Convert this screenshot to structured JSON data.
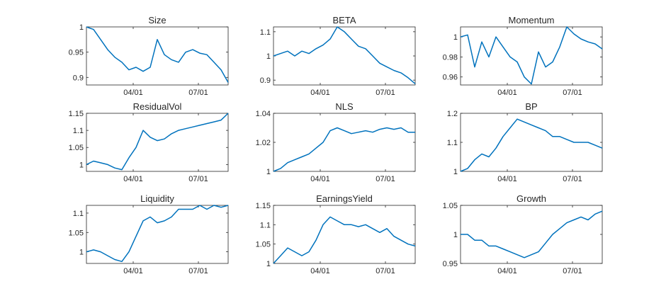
{
  "chart_data": [
    {
      "type": "line",
      "title": "Size",
      "x_ticks": [
        "04/01",
        "07/01"
      ],
      "y_ticks": [
        0.9,
        0.95,
        1
      ],
      "ylim": [
        0.885,
        1.0
      ],
      "xlim": [
        0,
        1
      ],
      "series_color": "#0072BD",
      "series": [
        {
          "x": [
            0,
            0.05,
            0.1,
            0.15,
            0.2,
            0.25,
            0.3,
            0.35,
            0.4,
            0.45,
            0.5,
            0.55,
            0.6,
            0.65,
            0.7,
            0.75,
            0.8,
            0.85,
            0.9,
            0.95,
            1.0
          ],
          "values": [
            1.0,
            0.995,
            0.975,
            0.955,
            0.94,
            0.93,
            0.915,
            0.92,
            0.912,
            0.92,
            0.975,
            0.945,
            0.935,
            0.93,
            0.95,
            0.955,
            0.948,
            0.945,
            0.93,
            0.915,
            0.89
          ]
        }
      ]
    },
    {
      "type": "line",
      "title": "BETA",
      "x_ticks": [
        "04/01",
        "07/01"
      ],
      "y_ticks": [
        0.9,
        1,
        1.1
      ],
      "ylim": [
        0.88,
        1.12
      ],
      "xlim": [
        0,
        1
      ],
      "series_color": "#0072BD",
      "series": [
        {
          "x": [
            0,
            0.05,
            0.1,
            0.15,
            0.2,
            0.25,
            0.3,
            0.35,
            0.4,
            0.45,
            0.5,
            0.55,
            0.6,
            0.65,
            0.7,
            0.75,
            0.8,
            0.85,
            0.9,
            0.95,
            1.0
          ],
          "values": [
            1.0,
            1.01,
            1.02,
            1.0,
            1.02,
            1.01,
            1.03,
            1.045,
            1.07,
            1.12,
            1.1,
            1.07,
            1.04,
            1.03,
            1.0,
            0.97,
            0.955,
            0.94,
            0.93,
            0.91,
            0.885
          ]
        }
      ]
    },
    {
      "type": "line",
      "title": "Momentum",
      "x_ticks": [
        "04/01",
        "07/01"
      ],
      "y_ticks": [
        0.96,
        0.98,
        1
      ],
      "ylim": [
        0.952,
        1.01
      ],
      "xlim": [
        0,
        1
      ],
      "series_color": "#0072BD",
      "series": [
        {
          "x": [
            0,
            0.05,
            0.1,
            0.15,
            0.2,
            0.25,
            0.3,
            0.35,
            0.4,
            0.45,
            0.5,
            0.55,
            0.6,
            0.65,
            0.7,
            0.75,
            0.8,
            0.85,
            0.9,
            0.95,
            1.0
          ],
          "values": [
            1.0,
            1.002,
            0.97,
            0.995,
            0.98,
            1.0,
            0.99,
            0.98,
            0.975,
            0.96,
            0.953,
            0.985,
            0.97,
            0.975,
            0.99,
            1.01,
            1.003,
            0.998,
            0.995,
            0.993,
            0.988
          ]
        }
      ]
    },
    {
      "type": "line",
      "title": "ResidualVol",
      "x_ticks": [
        "04/01",
        "07/01"
      ],
      "y_ticks": [
        1,
        1.05,
        1.1,
        1.15
      ],
      "ylim": [
        0.98,
        1.15
      ],
      "xlim": [
        0,
        1
      ],
      "series_color": "#0072BD",
      "series": [
        {
          "x": [
            0,
            0.05,
            0.1,
            0.15,
            0.2,
            0.25,
            0.3,
            0.35,
            0.4,
            0.45,
            0.5,
            0.55,
            0.6,
            0.65,
            0.7,
            0.75,
            0.8,
            0.85,
            0.9,
            0.95,
            1.0
          ],
          "values": [
            1.0,
            1.01,
            1.005,
            1.0,
            0.99,
            0.985,
            1.02,
            1.05,
            1.1,
            1.08,
            1.07,
            1.075,
            1.09,
            1.1,
            1.105,
            1.11,
            1.115,
            1.12,
            1.125,
            1.13,
            1.15
          ]
        }
      ]
    },
    {
      "type": "line",
      "title": "NLS",
      "x_ticks": [
        "04/01",
        "07/01"
      ],
      "y_ticks": [
        1,
        1.02,
        1.04
      ],
      "ylim": [
        1.0,
        1.04
      ],
      "xlim": [
        0,
        1
      ],
      "series_color": "#0072BD",
      "series": [
        {
          "x": [
            0,
            0.05,
            0.1,
            0.15,
            0.2,
            0.25,
            0.3,
            0.35,
            0.4,
            0.45,
            0.5,
            0.55,
            0.6,
            0.65,
            0.7,
            0.75,
            0.8,
            0.85,
            0.9,
            0.95,
            1.0
          ],
          "values": [
            1.0,
            1.002,
            1.006,
            1.008,
            1.01,
            1.012,
            1.016,
            1.02,
            1.028,
            1.03,
            1.028,
            1.026,
            1.027,
            1.028,
            1.027,
            1.029,
            1.03,
            1.029,
            1.03,
            1.027,
            1.027
          ]
        }
      ]
    },
    {
      "type": "line",
      "title": "BP",
      "x_ticks": [
        "04/01",
        "07/01"
      ],
      "y_ticks": [
        1,
        1.1,
        1.2
      ],
      "ylim": [
        1.0,
        1.2
      ],
      "xlim": [
        0,
        1
      ],
      "series_color": "#0072BD",
      "series": [
        {
          "x": [
            0,
            0.05,
            0.1,
            0.15,
            0.2,
            0.25,
            0.3,
            0.35,
            0.4,
            0.45,
            0.5,
            0.55,
            0.6,
            0.65,
            0.7,
            0.75,
            0.8,
            0.85,
            0.9,
            0.95,
            1.0
          ],
          "values": [
            1.0,
            1.01,
            1.04,
            1.06,
            1.05,
            1.08,
            1.12,
            1.15,
            1.18,
            1.17,
            1.16,
            1.15,
            1.14,
            1.12,
            1.12,
            1.11,
            1.1,
            1.1,
            1.1,
            1.09,
            1.08
          ]
        }
      ]
    },
    {
      "type": "line",
      "title": "Liquidity",
      "x_ticks": [
        "04/01",
        "07/01"
      ],
      "y_ticks": [
        1,
        1.05,
        1.1
      ],
      "ylim": [
        0.97,
        1.12
      ],
      "xlim": [
        0,
        1
      ],
      "series_color": "#0072BD",
      "series": [
        {
          "x": [
            0,
            0.05,
            0.1,
            0.15,
            0.2,
            0.25,
            0.3,
            0.35,
            0.4,
            0.45,
            0.5,
            0.55,
            0.6,
            0.65,
            0.7,
            0.75,
            0.8,
            0.85,
            0.9,
            0.95,
            1.0
          ],
          "values": [
            1.0,
            1.005,
            1.0,
            0.99,
            0.98,
            0.975,
            1.0,
            1.04,
            1.08,
            1.09,
            1.075,
            1.08,
            1.09,
            1.11,
            1.11,
            1.11,
            1.12,
            1.11,
            1.12,
            1.115,
            1.12
          ]
        }
      ]
    },
    {
      "type": "line",
      "title": "EarningsYield",
      "x_ticks": [
        "04/01",
        "07/01"
      ],
      "y_ticks": [
        1,
        1.05,
        1.1,
        1.15
      ],
      "ylim": [
        1.0,
        1.15
      ],
      "xlim": [
        0,
        1
      ],
      "series_color": "#0072BD",
      "series": [
        {
          "x": [
            0,
            0.05,
            0.1,
            0.15,
            0.2,
            0.25,
            0.3,
            0.35,
            0.4,
            0.45,
            0.5,
            0.55,
            0.6,
            0.65,
            0.7,
            0.75,
            0.8,
            0.85,
            0.9,
            0.95,
            1.0
          ],
          "values": [
            1.0,
            1.02,
            1.04,
            1.03,
            1.02,
            1.03,
            1.06,
            1.1,
            1.12,
            1.11,
            1.1,
            1.1,
            1.095,
            1.1,
            1.09,
            1.08,
            1.09,
            1.07,
            1.06,
            1.05,
            1.045
          ]
        }
      ]
    },
    {
      "type": "line",
      "title": "Growth",
      "x_ticks": [
        "04/01",
        "07/01"
      ],
      "y_ticks": [
        0.95,
        1,
        1.05
      ],
      "ylim": [
        0.95,
        1.05
      ],
      "xlim": [
        0,
        1
      ],
      "series_color": "#0072BD",
      "series": [
        {
          "x": [
            0,
            0.05,
            0.1,
            0.15,
            0.2,
            0.25,
            0.3,
            0.35,
            0.4,
            0.45,
            0.5,
            0.55,
            0.6,
            0.65,
            0.7,
            0.75,
            0.8,
            0.85,
            0.9,
            0.95,
            1.0
          ],
          "values": [
            1.0,
            1.0,
            0.99,
            0.99,
            0.98,
            0.98,
            0.975,
            0.97,
            0.965,
            0.96,
            0.965,
            0.97,
            0.985,
            1.0,
            1.01,
            1.02,
            1.025,
            1.03,
            1.025,
            1.035,
            1.04
          ]
        }
      ]
    }
  ]
}
